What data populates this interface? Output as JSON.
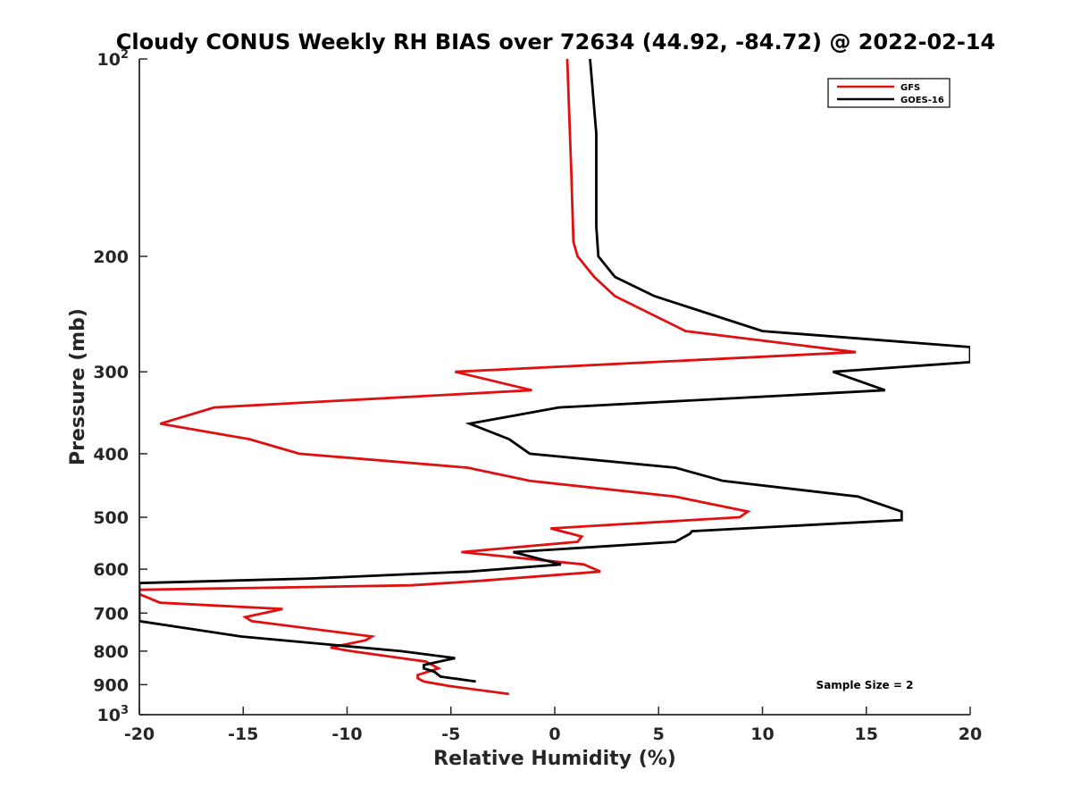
{
  "chart_data": {
    "type": "line",
    "title": "Cloudy CONUS Weekly RH BIAS over 72634 (44.92, -84.72) @ 2022-02-14",
    "xlabel": "Relative Humidity (%)",
    "ylabel": "Pressure (mb)",
    "xlim": [
      -20,
      20
    ],
    "ylim": [
      100,
      1000
    ],
    "y_scale": "log",
    "y_reversed": true,
    "x_ticks": [
      -20,
      -15,
      -10,
      -5,
      0,
      5,
      10,
      15,
      20
    ],
    "x_tick_labels": [
      "-20",
      "-15",
      "-10",
      "-5",
      "0",
      "5",
      "10",
      "15",
      "20"
    ],
    "y_ticks": [
      {
        "value": 100,
        "base": "10",
        "exp": "2"
      },
      {
        "value": 200,
        "label": "200"
      },
      {
        "value": 300,
        "label": "300"
      },
      {
        "value": 400,
        "label": "400"
      },
      {
        "value": 500,
        "label": "500"
      },
      {
        "value": 600,
        "label": "600"
      },
      {
        "value": 700,
        "label": "700"
      },
      {
        "value": 800,
        "label": "800"
      },
      {
        "value": 900,
        "label": "900"
      },
      {
        "value": 1000,
        "base": "10",
        "exp": "3"
      }
    ],
    "grid": false,
    "legend_position": "top-right",
    "annotation": "Sample Size = 2",
    "series": [
      {
        "name": "GFS",
        "color": "#e01010",
        "points": [
          [
            0.6,
            100
          ],
          [
            0.8,
            150
          ],
          [
            0.9,
            190
          ],
          [
            1.1,
            200
          ],
          [
            1.9,
            215
          ],
          [
            2.9,
            230
          ],
          [
            6.3,
            260
          ],
          [
            14.5,
            280
          ],
          [
            -4.8,
            300
          ],
          [
            -1.1,
            320
          ],
          [
            -16.4,
            340
          ],
          [
            -19.0,
            360
          ],
          [
            -14.7,
            380
          ],
          [
            -12.3,
            400
          ],
          [
            -4.2,
            420
          ],
          [
            -1.2,
            440
          ],
          [
            5.8,
            465
          ],
          [
            9.3,
            490
          ],
          [
            8.9,
            500
          ],
          [
            -0.2,
            520
          ],
          [
            1.3,
            535
          ],
          [
            1.1,
            545
          ],
          [
            -4.5,
            565
          ],
          [
            1.4,
            590
          ],
          [
            2.2,
            605
          ],
          [
            -3.6,
            625
          ],
          [
            -6.9,
            635
          ],
          [
            -20.0,
            645
          ],
          [
            -20.0,
            655
          ],
          [
            -19.0,
            675
          ],
          [
            -13.1,
            690
          ],
          [
            -14.9,
            710
          ],
          [
            -14.6,
            720
          ],
          [
            -8.8,
            760
          ],
          [
            -9.1,
            770
          ],
          [
            -10.8,
            790
          ],
          [
            -9.8,
            800
          ],
          [
            -6.2,
            830
          ],
          [
            -5.6,
            850
          ],
          [
            -6.6,
            870
          ],
          [
            -6.6,
            880
          ],
          [
            -6.3,
            890
          ],
          [
            -5.0,
            905
          ],
          [
            -2.2,
            930
          ]
        ]
      },
      {
        "name": "GOES-16",
        "color": "#000000",
        "points": [
          [
            1.7,
            100
          ],
          [
            2.0,
            130
          ],
          [
            2.0,
            180
          ],
          [
            2.1,
            200
          ],
          [
            2.9,
            215
          ],
          [
            4.8,
            230
          ],
          [
            10.0,
            260
          ],
          [
            20.0,
            275
          ],
          [
            20.0,
            290
          ],
          [
            13.4,
            300
          ],
          [
            15.9,
            320
          ],
          [
            0.2,
            340
          ],
          [
            -4.1,
            360
          ],
          [
            -2.2,
            380
          ],
          [
            -1.2,
            400
          ],
          [
            5.8,
            420
          ],
          [
            8.1,
            440
          ],
          [
            14.6,
            465
          ],
          [
            16.7,
            490
          ],
          [
            16.7,
            505
          ],
          [
            6.6,
            525
          ],
          [
            6.5,
            530
          ],
          [
            5.8,
            545
          ],
          [
            -2.0,
            565
          ],
          [
            0.3,
            590
          ],
          [
            -4.1,
            605
          ],
          [
            -11.8,
            620
          ],
          [
            -20.0,
            630
          ],
          [
            -20.0,
            720
          ],
          [
            -15.1,
            760
          ],
          [
            -7.4,
            800
          ],
          [
            -4.8,
            820
          ],
          [
            -6.3,
            840
          ],
          [
            -6.3,
            850
          ],
          [
            -5.8,
            860
          ],
          [
            -5.5,
            875
          ],
          [
            -3.8,
            890
          ]
        ]
      }
    ]
  }
}
